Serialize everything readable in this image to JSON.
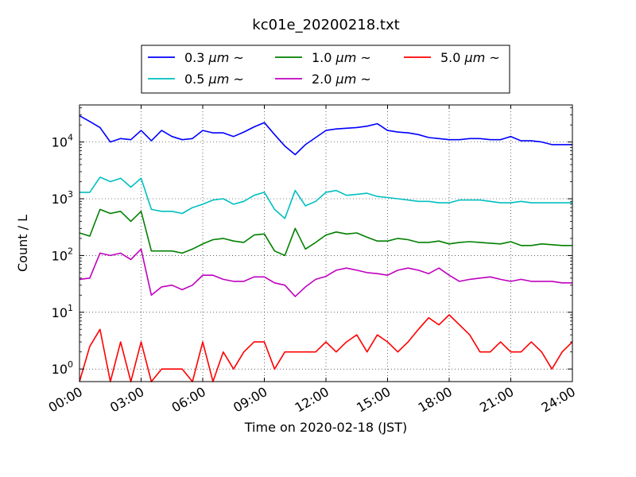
{
  "chart_data": {
    "type": "line",
    "title": "kc01e_20200218.txt",
    "xlabel": "Time on 2020-02-18 (JST)",
    "ylabel": "Count / L",
    "yscale": "log",
    "xlim": [
      "00:00",
      "24:00"
    ],
    "ylim": [
      0.6,
      45000
    ],
    "grid": true,
    "legend_position": "top-center",
    "x_ticks": [
      "00:00",
      "03:00",
      "06:00",
      "09:00",
      "12:00",
      "15:00",
      "18:00",
      "21:00",
      "24:00"
    ],
    "y_ticks": [
      {
        "value": 1,
        "base": "10",
        "exp": "0"
      },
      {
        "value": 10,
        "base": "10",
        "exp": "1"
      },
      {
        "value": 100,
        "base": "10",
        "exp": "2"
      },
      {
        "value": 1000,
        "base": "10",
        "exp": "3"
      },
      {
        "value": 10000,
        "base": "10",
        "exp": "4"
      }
    ],
    "x": [
      "00:00",
      "00:30",
      "01:00",
      "01:30",
      "02:00",
      "02:30",
      "03:00",
      "03:30",
      "04:00",
      "04:30",
      "05:00",
      "05:30",
      "06:00",
      "06:30",
      "07:00",
      "07:30",
      "08:00",
      "08:30",
      "09:00",
      "09:30",
      "10:00",
      "10:30",
      "11:00",
      "11:30",
      "12:00",
      "12:30",
      "13:00",
      "13:30",
      "14:00",
      "14:30",
      "15:00",
      "15:30",
      "16:00",
      "16:30",
      "17:00",
      "17:30",
      "18:00",
      "18:30",
      "19:00",
      "19:30",
      "20:00",
      "20:30",
      "21:00",
      "21:30",
      "22:00",
      "22:30",
      "23:00",
      "23:30",
      "24:00"
    ],
    "series": [
      {
        "name": "0.3",
        "unit": "μm",
        "suffix": "~",
        "color": "#0000ff",
        "values": [
          29000,
          23000,
          18000,
          10000,
          11500,
          11000,
          16000,
          10500,
          16000,
          12500,
          11000,
          11500,
          16000,
          14500,
          14500,
          12500,
          15000,
          18500,
          22000,
          13500,
          8500,
          6000,
          9000,
          12000,
          16000,
          17000,
          17500,
          18000,
          19000,
          21000,
          16000,
          15000,
          14500,
          13500,
          12000,
          11500,
          11000,
          11000,
          11500,
          11500,
          11000,
          11000,
          12500,
          10500,
          10500,
          10000,
          9000,
          9000,
          9000
        ]
      },
      {
        "name": "0.5",
        "unit": "μm",
        "suffix": "~",
        "color": "#00bfbf",
        "values": [
          1300,
          1300,
          2400,
          2000,
          2300,
          1600,
          2300,
          650,
          600,
          600,
          550,
          700,
          800,
          950,
          1000,
          800,
          900,
          1150,
          1300,
          650,
          450,
          1400,
          750,
          900,
          1300,
          1400,
          1150,
          1200,
          1250,
          1100,
          1050,
          1000,
          950,
          900,
          900,
          850,
          850,
          950,
          950,
          950,
          900,
          850,
          850,
          900,
          850,
          850,
          850,
          850,
          850
        ]
      },
      {
        "name": "1.0",
        "unit": "μm",
        "suffix": "~",
        "color": "#008000",
        "values": [
          250,
          220,
          650,
          550,
          600,
          400,
          600,
          120,
          120,
          120,
          110,
          130,
          160,
          190,
          200,
          180,
          170,
          230,
          240,
          120,
          100,
          300,
          130,
          170,
          230,
          260,
          240,
          250,
          210,
          180,
          180,
          200,
          190,
          170,
          170,
          180,
          160,
          170,
          175,
          170,
          165,
          160,
          175,
          150,
          150,
          160,
          155,
          150,
          150
        ]
      },
      {
        "name": "2.0",
        "unit": "μm",
        "suffix": "~",
        "color": "#bf00bf",
        "values": [
          38,
          40,
          110,
          100,
          110,
          85,
          130,
          20,
          28,
          30,
          25,
          30,
          45,
          45,
          38,
          35,
          35,
          42,
          42,
          33,
          30,
          19,
          28,
          38,
          43,
          55,
          60,
          55,
          50,
          48,
          45,
          55,
          60,
          55,
          48,
          60,
          45,
          35,
          38,
          40,
          42,
          38,
          35,
          38,
          35,
          35,
          35,
          33,
          33
        ]
      },
      {
        "name": "5.0",
        "unit": "μm",
        "suffix": "~",
        "color": "#ff0000",
        "values": [
          0.6,
          2.5,
          5,
          0.6,
          3,
          0.6,
          3,
          0.6,
          1,
          1,
          1,
          0.6,
          3,
          0.6,
          2,
          1,
          2,
          3,
          3,
          1,
          2,
          2,
          2,
          2,
          3,
          2,
          3,
          4,
          2,
          4,
          3,
          2,
          3,
          5,
          8,
          6,
          9,
          6,
          4,
          2,
          2,
          3,
          2,
          2,
          3,
          2,
          1,
          2,
          3
        ]
      }
    ]
  }
}
